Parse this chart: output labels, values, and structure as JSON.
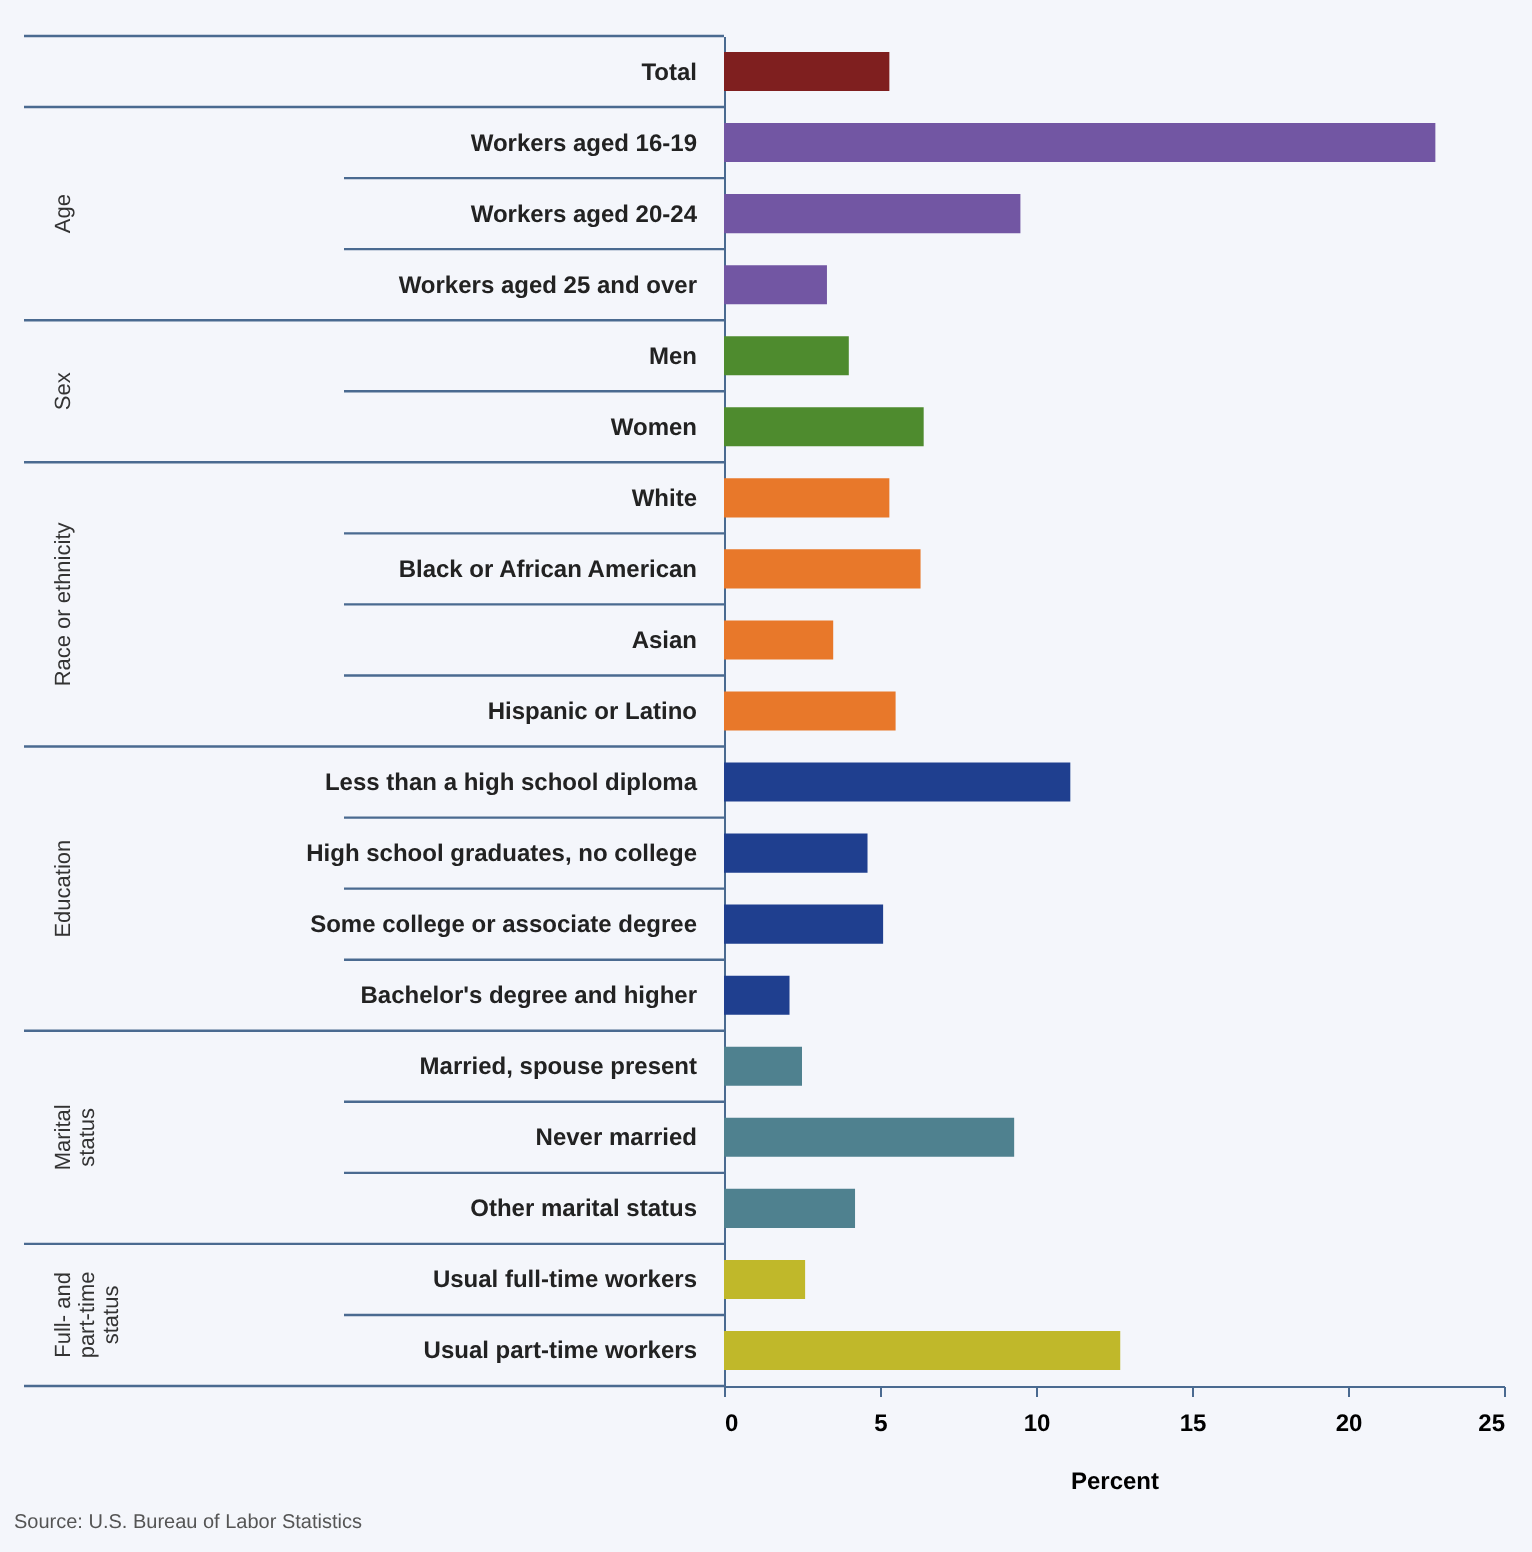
{
  "chart_data": {
    "type": "bar",
    "orientation": "horizontal",
    "xlabel": "Percent",
    "categories": [
      "Total",
      "Workers aged 16-19",
      "Workers aged 20-24",
      "Workers aged 25 and over",
      "Men",
      "Women",
      "White",
      "Black or African American",
      "Asian",
      "Hispanic or Latino",
      "Less than a high school diploma",
      "High school graduates, no college",
      "Some college or associate degree",
      "Bachelor's degree and higher",
      "Married, spouse present",
      "Never married",
      "Other marital status",
      "Usual full-time workers",
      "Usual part-time workers"
    ],
    "values": [
      5.3,
      22.8,
      9.5,
      3.3,
      4.0,
      6.4,
      5.3,
      6.3,
      3.5,
      5.5,
      11.1,
      4.6,
      5.1,
      2.1,
      2.5,
      9.3,
      4.2,
      2.6,
      12.7
    ],
    "colors": [
      "#7f1f1f",
      "#7256a3",
      "#7256a3",
      "#7256a3",
      "#4e8b2e",
      "#4e8b2e",
      "#e8782a",
      "#e8782a",
      "#e8782a",
      "#e8782a",
      "#1f3f8f",
      "#1f3f8f",
      "#1f3f8f",
      "#1f3f8f",
      "#4f818f",
      "#4f818f",
      "#4f818f",
      "#c0b82a",
      "#c0b82a"
    ],
    "xlim": [
      0,
      25
    ],
    "xticks": [
      0,
      5,
      10,
      15,
      20,
      25
    ],
    "grid": false,
    "annotations": [
      "Age",
      "Sex",
      "Race or ethnicity",
      "Education",
      "Marital status",
      "Full- and part-time status",
      "Source: U.S. Bureau of Labor Statistics"
    ]
  }
}
